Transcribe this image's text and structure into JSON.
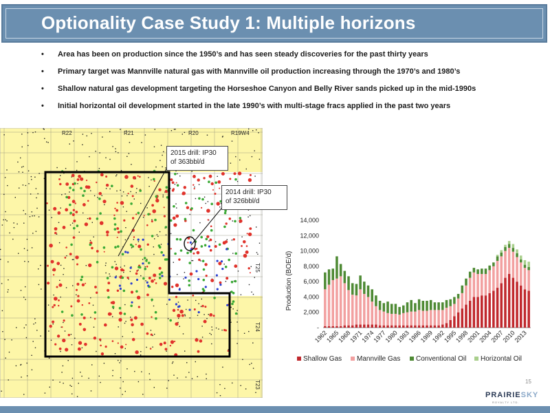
{
  "slide": {
    "title": "Optionality Case Study 1: Multiple horizons",
    "page_number": "15",
    "logo": {
      "part1": "PRAIRIE",
      "part2": "SKY",
      "tagline": "ROYALTY LTD."
    }
  },
  "colors": {
    "title_bar": "#6b8fb0",
    "shallow_gas": "#c0282d",
    "mannville_gas": "#f2a0a0",
    "conventional_oil": "#4e8a34",
    "horizontal_oil": "#a9cf8c",
    "map_background": "#fdf6a8"
  },
  "bullets": [
    "Area has been on production since the 1950’s and has seen steady discoveries for the past thirty years",
    "Primary target was Mannville natural gas with Mannville oil production increasing through the 1970’s and 1980’s",
    "Shallow natural gas development targeting the Horseshoe Canyon and Belly River sands picked up in the mid-1990s",
    "Initial horizontal oil development started in the late 1990’s with multi-stage fracs applied in the past two years"
  ],
  "map": {
    "range_labels": [
      "R22",
      "R21",
      "R20",
      "R19W4"
    ],
    "township_labels": [
      "T25",
      "T24",
      "T23"
    ],
    "callouts": [
      {
        "line1": "2015 drill: IP30",
        "line2": "of 363bbl/d"
      },
      {
        "line1": "2014 drill: IP30",
        "line2": "of 326bbl/d"
      }
    ]
  },
  "chart_data": {
    "type": "bar",
    "stacked": true,
    "title": "",
    "xlabel": "",
    "ylabel": "Production (BOE/d)",
    "ylim": [
      0,
      14000
    ],
    "yticks": [
      0,
      2000,
      4000,
      6000,
      8000,
      10000,
      12000,
      14000
    ],
    "ytick_labels": [
      "-",
      "2,000",
      "4,000",
      "6,000",
      "8,000",
      "10,000",
      "12,000",
      "14,000"
    ],
    "xtick_labels": [
      "1962",
      "1965",
      "1968",
      "1971",
      "1974",
      "1977",
      "1980",
      "1983",
      "1986",
      "1989",
      "1992",
      "1995",
      "1998",
      "2001",
      "2004",
      "2007",
      "2010",
      "2013"
    ],
    "categories": [
      "1962",
      "1963",
      "1964",
      "1965",
      "1966",
      "1967",
      "1968",
      "1969",
      "1970",
      "1971",
      "1972",
      "1973",
      "1974",
      "1975",
      "1976",
      "1977",
      "1978",
      "1979",
      "1980",
      "1981",
      "1982",
      "1983",
      "1984",
      "1985",
      "1986",
      "1987",
      "1988",
      "1989",
      "1990",
      "1991",
      "1992",
      "1993",
      "1994",
      "1995",
      "1996",
      "1997",
      "1998",
      "1999",
      "2000",
      "2001",
      "2002",
      "2003",
      "2004",
      "2005",
      "2006",
      "2007",
      "2008",
      "2009",
      "2010",
      "2011",
      "2012",
      "2013",
      "2014"
    ],
    "legend_position": "bottom",
    "grid": false,
    "series": [
      {
        "name": "Shallow Gas",
        "values": [
          200,
          200,
          200,
          200,
          200,
          300,
          300,
          300,
          400,
          400,
          400,
          400,
          400,
          400,
          300,
          300,
          300,
          300,
          300,
          300,
          300,
          300,
          300,
          300,
          300,
          300,
          300,
          300,
          300,
          300,
          400,
          600,
          1000,
          1500,
          2000,
          2500,
          3000,
          3500,
          4000,
          4000,
          4200,
          4200,
          4500,
          4800,
          5200,
          5800,
          6500,
          7000,
          6500,
          6000,
          5500,
          5000,
          4800
        ]
      },
      {
        "name": "Mannville Gas",
        "values": [
          4800,
          5400,
          6000,
          6200,
          6500,
          5500,
          4600,
          4000,
          3800,
          4600,
          4000,
          3600,
          3000,
          2400,
          2000,
          1800,
          1600,
          1500,
          1500,
          1400,
          1600,
          1700,
          1800,
          1800,
          2000,
          1900,
          1900,
          2000,
          2000,
          2000,
          1900,
          2000,
          1800,
          1600,
          1800,
          2000,
          2500,
          3000,
          3200,
          3000,
          2800,
          2800,
          3000,
          3200,
          3500,
          3500,
          3500,
          3400,
          3400,
          3200,
          3000,
          2800,
          2700
        ]
      },
      {
        "name": "Conventional Oil",
        "values": [
          2200,
          2000,
          1500,
          2900,
          1600,
          1600,
          1800,
          1500,
          1500,
          1800,
          1600,
          1500,
          1600,
          1400,
          1200,
          1100,
          1500,
          1300,
          1300,
          1000,
          1000,
          1300,
          1500,
          1100,
          1400,
          1300,
          1300,
          1300,
          1000,
          1000,
          1000,
          1000,
          900,
          900,
          600,
          1000,
          900,
          800,
          600,
          600,
          700,
          700,
          600,
          500,
          600,
          500,
          500,
          500,
          500,
          500,
          400,
          400,
          400
        ]
      },
      {
        "name": "Horizontal Oil",
        "values": [
          0,
          0,
          0,
          0,
          0,
          0,
          0,
          0,
          0,
          0,
          0,
          0,
          0,
          0,
          0,
          0,
          0,
          0,
          0,
          0,
          0,
          0,
          0,
          0,
          0,
          0,
          0,
          0,
          0,
          0,
          0,
          0,
          0,
          0,
          0,
          0,
          0,
          0,
          0,
          0,
          0,
          0,
          0,
          0,
          200,
          300,
          300,
          400,
          500,
          500,
          500,
          600,
          700
        ]
      }
    ]
  }
}
